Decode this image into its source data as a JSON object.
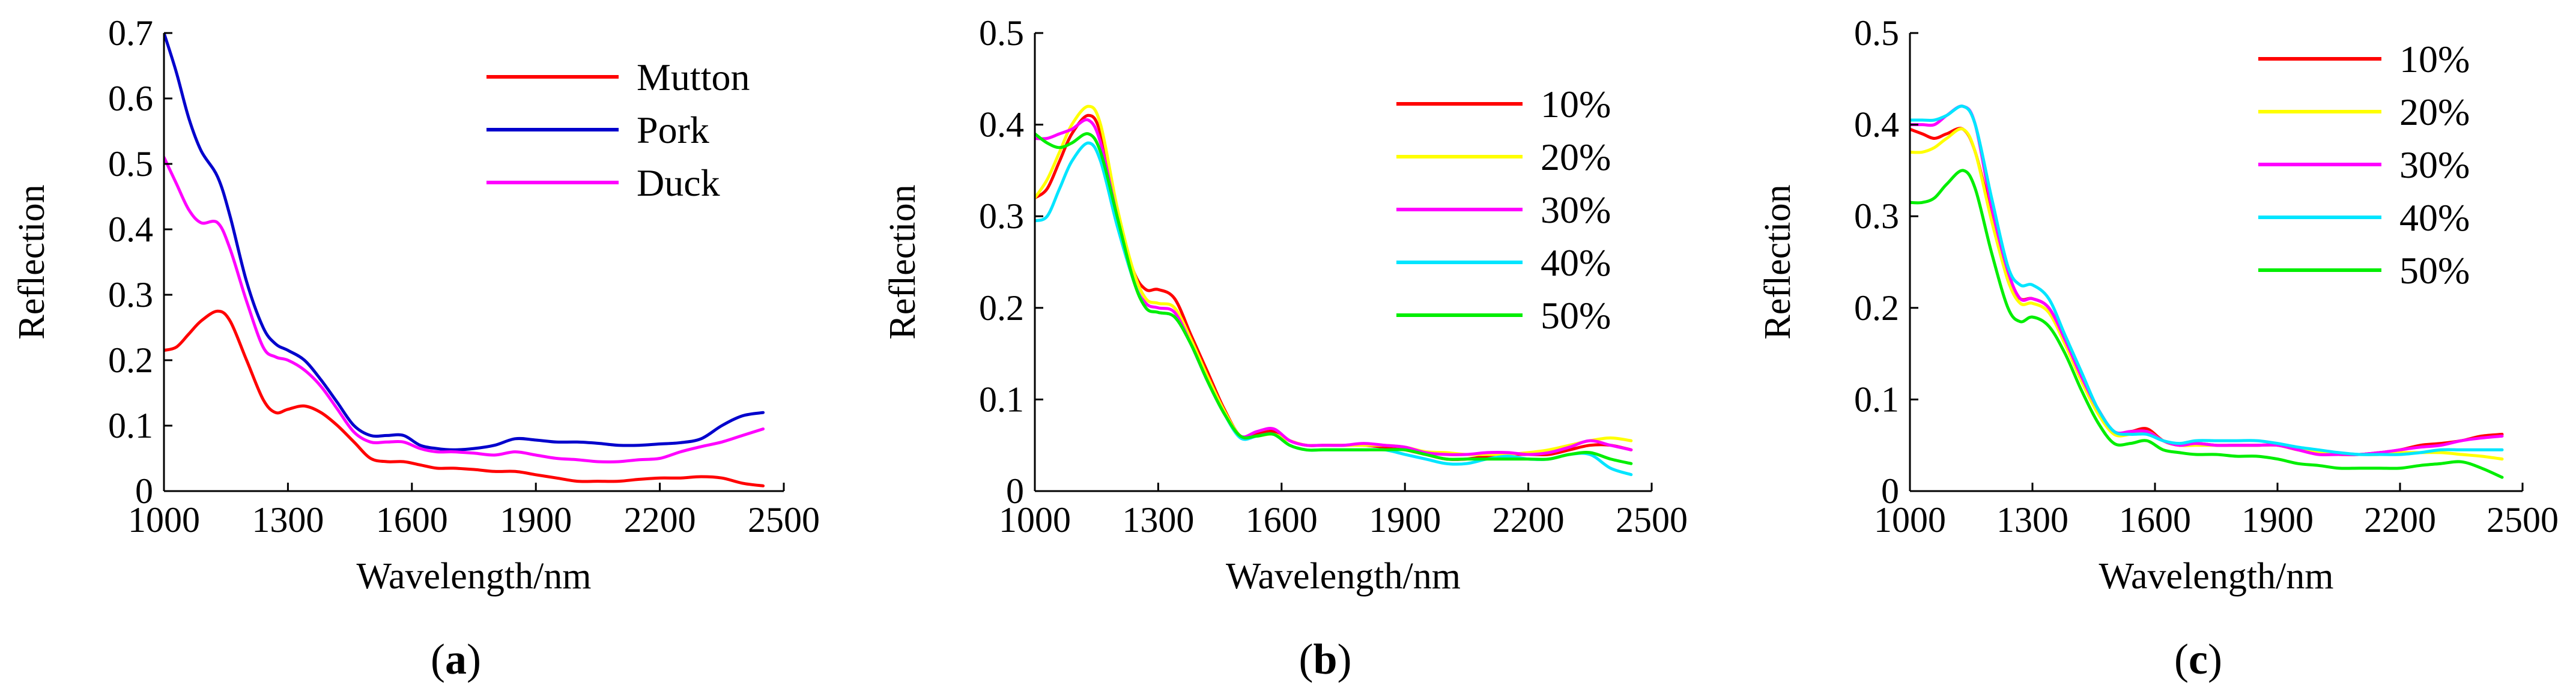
{
  "chart_data": [
    {
      "type": "line",
      "caption": "a",
      "xlabel": "Wavelength/nm",
      "ylabel": "Reflection",
      "xlim": [
        1000,
        2500
      ],
      "ylim": [
        0,
        0.7
      ],
      "xticks": [
        "1000",
        "1300",
        "1600",
        "1900",
        "2200",
        "2500"
      ],
      "yticks": [
        "0",
        "0.1",
        "0.2",
        "0.3",
        "0.4",
        "0.5",
        "0.6",
        "0.7"
      ],
      "x": [
        1000,
        1030,
        1060,
        1090,
        1130,
        1160,
        1200,
        1240,
        1270,
        1300,
        1340,
        1380,
        1420,
        1460,
        1500,
        1540,
        1580,
        1620,
        1660,
        1700,
        1750,
        1800,
        1850,
        1900,
        1950,
        2000,
        2050,
        2100,
        2150,
        2200,
        2250,
        2300,
        2350,
        2400,
        2450
      ],
      "series": [
        {
          "name": "Mutton",
          "color": "#ff0000",
          "values": [
            0.215,
            0.22,
            0.24,
            0.26,
            0.275,
            0.26,
            0.2,
            0.14,
            0.12,
            0.125,
            0.13,
            0.12,
            0.1,
            0.075,
            0.05,
            0.045,
            0.045,
            0.04,
            0.035,
            0.035,
            0.033,
            0.03,
            0.03,
            0.025,
            0.02,
            0.015,
            0.015,
            0.015,
            0.018,
            0.02,
            0.02,
            0.022,
            0.02,
            0.012,
            0.008
          ]
        },
        {
          "name": "Pork",
          "color": "#0000cc",
          "values": [
            0.7,
            0.64,
            0.57,
            0.52,
            0.48,
            0.42,
            0.32,
            0.25,
            0.225,
            0.215,
            0.2,
            0.17,
            0.135,
            0.1,
            0.085,
            0.085,
            0.085,
            0.07,
            0.065,
            0.063,
            0.065,
            0.07,
            0.08,
            0.078,
            0.075,
            0.075,
            0.073,
            0.07,
            0.07,
            0.072,
            0.074,
            0.08,
            0.1,
            0.115,
            0.12
          ]
        },
        {
          "name": "Duck",
          "color": "#ff00ff",
          "values": [
            0.51,
            0.47,
            0.43,
            0.41,
            0.41,
            0.37,
            0.29,
            0.22,
            0.205,
            0.2,
            0.185,
            0.16,
            0.125,
            0.09,
            0.075,
            0.075,
            0.075,
            0.065,
            0.06,
            0.06,
            0.058,
            0.055,
            0.06,
            0.055,
            0.05,
            0.048,
            0.045,
            0.045,
            0.048,
            0.05,
            0.06,
            0.068,
            0.075,
            0.085,
            0.095
          ]
        }
      ]
    },
    {
      "type": "line",
      "caption": "b",
      "xlabel": "Wavelength/nm",
      "ylabel": "Reflection",
      "xlim": [
        1000,
        2500
      ],
      "ylim": [
        0,
        0.5
      ],
      "xticks": [
        "1000",
        "1300",
        "1600",
        "1900",
        "2200",
        "2500"
      ],
      "yticks": [
        "0",
        "0.1",
        "0.2",
        "0.3",
        "0.4",
        "0.5"
      ],
      "x": [
        1000,
        1030,
        1060,
        1090,
        1130,
        1160,
        1200,
        1240,
        1270,
        1300,
        1340,
        1380,
        1420,
        1460,
        1500,
        1540,
        1580,
        1620,
        1660,
        1700,
        1750,
        1800,
        1850,
        1900,
        1950,
        2000,
        2050,
        2100,
        2150,
        2200,
        2250,
        2300,
        2350,
        2400,
        2450
      ],
      "series": [
        {
          "name": "10%",
          "color": "#ff0000",
          "values": [
            0.32,
            0.33,
            0.36,
            0.39,
            0.41,
            0.39,
            0.3,
            0.24,
            0.22,
            0.22,
            0.21,
            0.17,
            0.13,
            0.09,
            0.06,
            0.062,
            0.065,
            0.055,
            0.05,
            0.05,
            0.05,
            0.05,
            0.048,
            0.045,
            0.04,
            0.035,
            0.035,
            0.038,
            0.04,
            0.04,
            0.04,
            0.045,
            0.05,
            0.05,
            0.045
          ]
        },
        {
          "name": "20%",
          "color": "#ffff00",
          "values": [
            0.32,
            0.34,
            0.37,
            0.4,
            0.42,
            0.4,
            0.31,
            0.24,
            0.21,
            0.205,
            0.2,
            0.165,
            0.125,
            0.088,
            0.06,
            0.06,
            0.062,
            0.055,
            0.05,
            0.05,
            0.05,
            0.05,
            0.05,
            0.048,
            0.043,
            0.042,
            0.04,
            0.04,
            0.04,
            0.042,
            0.045,
            0.05,
            0.055,
            0.058,
            0.055
          ]
        },
        {
          "name": "30%",
          "color": "#ff00ff",
          "values": [
            0.385,
            0.385,
            0.39,
            0.395,
            0.405,
            0.38,
            0.3,
            0.23,
            0.205,
            0.2,
            0.195,
            0.16,
            0.12,
            0.085,
            0.06,
            0.065,
            0.068,
            0.055,
            0.05,
            0.05,
            0.05,
            0.052,
            0.05,
            0.048,
            0.042,
            0.04,
            0.04,
            0.042,
            0.042,
            0.04,
            0.042,
            0.048,
            0.055,
            0.05,
            0.045
          ]
        },
        {
          "name": "40%",
          "color": "#00e5ff",
          "values": [
            0.295,
            0.3,
            0.33,
            0.36,
            0.38,
            0.36,
            0.29,
            0.23,
            0.2,
            0.195,
            0.19,
            0.16,
            0.12,
            0.085,
            0.058,
            0.06,
            0.062,
            0.05,
            0.045,
            0.045,
            0.045,
            0.045,
            0.045,
            0.04,
            0.035,
            0.03,
            0.03,
            0.035,
            0.038,
            0.035,
            0.035,
            0.04,
            0.04,
            0.025,
            0.018
          ]
        },
        {
          "name": "50%",
          "color": "#00ee00",
          "values": [
            0.39,
            0.38,
            0.375,
            0.38,
            0.39,
            0.37,
            0.3,
            0.23,
            0.2,
            0.195,
            0.19,
            0.16,
            0.12,
            0.085,
            0.06,
            0.06,
            0.062,
            0.05,
            0.045,
            0.045,
            0.045,
            0.045,
            0.045,
            0.045,
            0.04,
            0.035,
            0.035,
            0.035,
            0.035,
            0.035,
            0.035,
            0.04,
            0.042,
            0.035,
            0.03
          ]
        }
      ]
    },
    {
      "type": "line",
      "caption": "c",
      "xlabel": "Wavelength/nm",
      "ylabel": "Reflection",
      "xlim": [
        1000,
        2500
      ],
      "ylim": [
        0,
        0.5
      ],
      "xticks": [
        "1000",
        "1300",
        "1600",
        "1900",
        "2200",
        "2500"
      ],
      "yticks": [
        "0",
        "0.1",
        "0.2",
        "0.3",
        "0.4",
        "0.5"
      ],
      "x": [
        1000,
        1030,
        1060,
        1090,
        1130,
        1160,
        1200,
        1240,
        1270,
        1300,
        1340,
        1380,
        1420,
        1460,
        1500,
        1540,
        1580,
        1620,
        1660,
        1700,
        1750,
        1800,
        1850,
        1900,
        1950,
        2000,
        2050,
        2100,
        2150,
        2200,
        2250,
        2300,
        2350,
        2400,
        2450
      ],
      "series": [
        {
          "name": "10%",
          "color": "#ff0000",
          "values": [
            0.395,
            0.39,
            0.385,
            0.39,
            0.395,
            0.37,
            0.3,
            0.23,
            0.21,
            0.21,
            0.2,
            0.165,
            0.125,
            0.09,
            0.065,
            0.065,
            0.068,
            0.055,
            0.05,
            0.052,
            0.05,
            0.05,
            0.05,
            0.05,
            0.045,
            0.042,
            0.04,
            0.04,
            0.042,
            0.045,
            0.05,
            0.052,
            0.055,
            0.06,
            0.062
          ]
        },
        {
          "name": "20%",
          "color": "#ffff00",
          "values": [
            0.37,
            0.37,
            0.375,
            0.385,
            0.395,
            0.37,
            0.295,
            0.23,
            0.205,
            0.205,
            0.195,
            0.16,
            0.12,
            0.085,
            0.062,
            0.062,
            0.065,
            0.055,
            0.05,
            0.05,
            0.05,
            0.05,
            0.05,
            0.05,
            0.045,
            0.042,
            0.04,
            0.04,
            0.04,
            0.042,
            0.042,
            0.042,
            0.04,
            0.038,
            0.035
          ]
        },
        {
          "name": "30%",
          "color": "#ff00ff",
          "values": [
            0.4,
            0.4,
            0.4,
            0.41,
            0.42,
            0.4,
            0.31,
            0.24,
            0.21,
            0.21,
            0.2,
            0.165,
            0.125,
            0.09,
            0.065,
            0.065,
            0.065,
            0.055,
            0.05,
            0.052,
            0.05,
            0.05,
            0.05,
            0.05,
            0.045,
            0.04,
            0.04,
            0.04,
            0.042,
            0.045,
            0.048,
            0.05,
            0.055,
            0.058,
            0.06
          ]
        },
        {
          "name": "40%",
          "color": "#00e5ff",
          "values": [
            0.405,
            0.405,
            0.405,
            0.41,
            0.42,
            0.4,
            0.32,
            0.245,
            0.225,
            0.225,
            0.21,
            0.17,
            0.13,
            0.09,
            0.065,
            0.062,
            0.062,
            0.055,
            0.052,
            0.055,
            0.055,
            0.055,
            0.055,
            0.052,
            0.048,
            0.045,
            0.042,
            0.04,
            0.04,
            0.04,
            0.042,
            0.045,
            0.045,
            0.045,
            0.045
          ]
        },
        {
          "name": "50%",
          "color": "#00ee00",
          "values": [
            0.315,
            0.315,
            0.32,
            0.335,
            0.35,
            0.33,
            0.26,
            0.2,
            0.185,
            0.19,
            0.18,
            0.15,
            0.11,
            0.075,
            0.052,
            0.052,
            0.055,
            0.045,
            0.042,
            0.04,
            0.04,
            0.038,
            0.038,
            0.035,
            0.03,
            0.028,
            0.025,
            0.025,
            0.025,
            0.025,
            0.028,
            0.03,
            0.032,
            0.025,
            0.015
          ]
        }
      ]
    }
  ]
}
